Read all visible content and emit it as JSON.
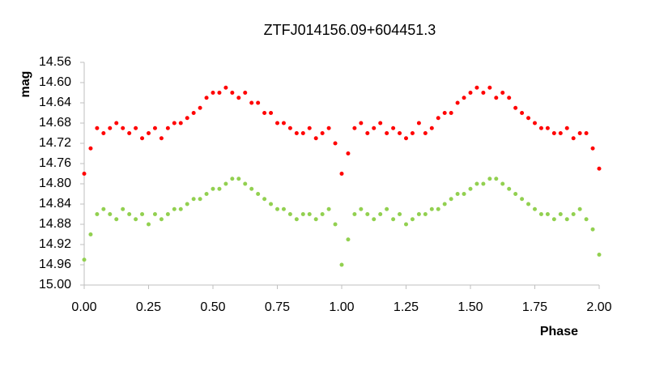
{
  "chart_data": {
    "type": "scatter",
    "title": "ZTFJ014156.09+604451.3",
    "x_label": "Phase",
    "y_label": "mag",
    "xlim": [
      0,
      2
    ],
    "xticks": [
      {
        "value": 0,
        "label": "0.00"
      },
      0.25,
      {
        "value": 0.5,
        "label": "0.50"
      },
      0.75,
      {
        "value": 1,
        "label": "1.00"
      },
      1.25,
      {
        "value": 1.5,
        "label": "1.50"
      },
      1.75,
      {
        "value": 2,
        "label": "2.00"
      }
    ],
    "ylim": [
      14.56,
      15.0
    ],
    "y_reversed": true,
    "yticks": [
      14.56,
      {
        "value": 14.6,
        "label": "14.60"
      },
      14.64,
      14.68,
      14.72,
      14.76,
      {
        "value": 14.8,
        "label": "14.80"
      },
      14.84,
      14.88,
      14.92,
      14.96,
      {
        "value": 15.0,
        "label": "15.00"
      }
    ],
    "x": [
      0,
      0.025,
      0.05,
      0.075,
      0.1,
      0.125,
      0.15,
      0.175,
      0.2,
      0.225,
      0.25,
      0.275,
      0.3,
      0.325,
      0.35,
      0.375,
      0.4,
      0.425,
      0.45,
      0.475,
      0.5,
      0.525,
      0.55,
      0.575,
      0.6,
      0.625,
      0.65,
      0.675,
      0.7,
      0.725,
      0.75,
      0.775,
      0.8,
      0.825,
      0.85,
      0.875,
      0.9,
      0.925,
      0.95,
      0.975,
      1,
      1.025,
      1.05,
      1.075,
      1.1,
      1.125,
      1.15,
      1.175,
      1.2,
      1.225,
      1.25,
      1.275,
      1.3,
      1.325,
      1.35,
      1.375,
      1.4,
      1.425,
      1.45,
      1.475,
      1.5,
      1.525,
      1.55,
      1.575,
      1.6,
      1.625,
      1.65,
      1.675,
      1.7,
      1.725,
      1.75,
      1.775,
      1.8,
      1.825,
      1.85,
      1.875,
      1.9,
      1.925,
      1.95,
      1.975,
      2
    ],
    "series": [
      {
        "color": "#ff0000",
        "values": [
          14.78,
          14.73,
          14.69,
          14.7,
          14.69,
          14.68,
          14.69,
          14.7,
          14.69,
          14.71,
          14.7,
          14.69,
          14.71,
          14.69,
          14.68,
          14.68,
          14.67,
          14.66,
          14.65,
          14.63,
          14.62,
          14.62,
          14.61,
          14.62,
          14.63,
          14.62,
          14.64,
          14.64,
          14.66,
          14.66,
          14.68,
          14.68,
          14.69,
          14.7,
          14.7,
          14.69,
          14.71,
          14.7,
          14.69,
          14.72,
          14.78,
          14.74,
          14.69,
          14.68,
          14.7,
          14.69,
          14.68,
          14.7,
          14.69,
          14.7,
          14.71,
          14.7,
          14.68,
          14.7,
          14.69,
          14.67,
          14.66,
          14.66,
          14.64,
          14.63,
          14.62,
          14.61,
          14.62,
          14.61,
          14.63,
          14.62,
          14.63,
          14.65,
          14.66,
          14.67,
          14.68,
          14.69,
          14.69,
          14.7,
          14.7,
          14.69,
          14.71,
          14.7,
          14.7,
          14.73,
          14.77
        ]
      },
      {
        "color": "#92d050",
        "values": [
          14.95,
          14.9,
          14.86,
          14.85,
          14.86,
          14.87,
          14.85,
          14.86,
          14.87,
          14.86,
          14.88,
          14.86,
          14.87,
          14.86,
          14.85,
          14.85,
          14.84,
          14.83,
          14.83,
          14.82,
          14.81,
          14.81,
          14.8,
          14.79,
          14.79,
          14.8,
          14.81,
          14.82,
          14.83,
          14.84,
          14.85,
          14.85,
          14.86,
          14.87,
          14.86,
          14.86,
          14.87,
          14.86,
          14.85,
          14.88,
          14.96,
          14.91,
          14.86,
          14.85,
          14.86,
          14.87,
          14.86,
          14.85,
          14.87,
          14.86,
          14.88,
          14.87,
          14.86,
          14.86,
          14.85,
          14.85,
          14.84,
          14.83,
          14.82,
          14.82,
          14.81,
          14.8,
          14.8,
          14.79,
          14.79,
          14.8,
          14.81,
          14.82,
          14.83,
          14.84,
          14.85,
          14.86,
          14.86,
          14.87,
          14.86,
          14.87,
          14.86,
          14.85,
          14.87,
          14.89,
          14.94
        ]
      }
    ]
  }
}
